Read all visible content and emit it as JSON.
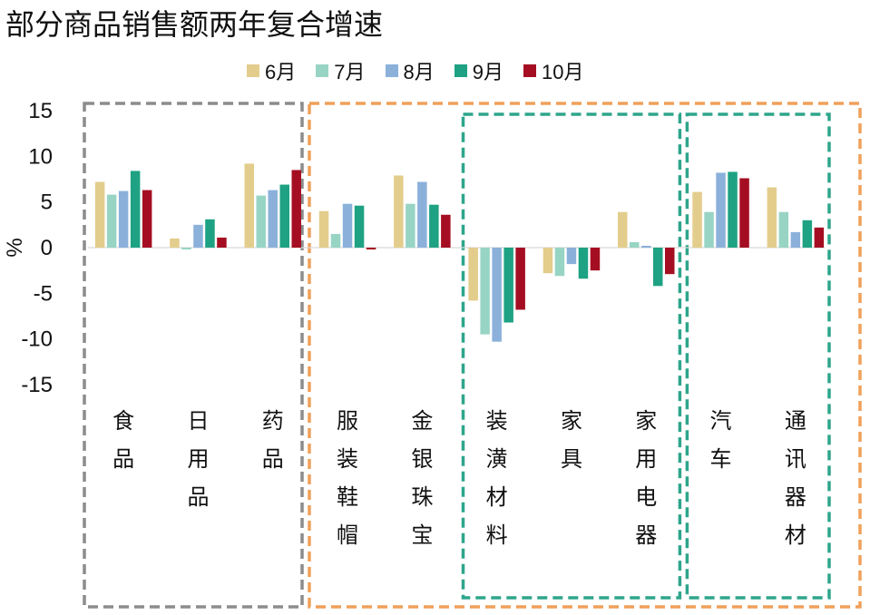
{
  "chart_data": {
    "type": "bar",
    "title": "部分商品销售额两年复合增速",
    "ylabel": "%",
    "ylim": [
      -15,
      15
    ],
    "yticks": [
      15,
      10,
      5,
      0,
      -5,
      -10,
      -15
    ],
    "categories": [
      "食品",
      "日用品",
      "药品",
      "服装鞋帽",
      "金银珠宝",
      "装潢材料",
      "家具",
      "家用电器",
      "汽车",
      "通讯器材"
    ],
    "series": [
      {
        "name": "6月",
        "color": "#E3CD8C",
        "values": [
          7.2,
          1.0,
          9.2,
          4.0,
          7.9,
          -5.8,
          -2.8,
          3.9,
          6.1,
          6.6
        ]
      },
      {
        "name": "7月",
        "color": "#98D4C4",
        "values": [
          5.8,
          -0.2,
          5.7,
          1.5,
          4.8,
          -9.5,
          -3.1,
          0.6,
          3.9,
          3.9
        ]
      },
      {
        "name": "8月",
        "color": "#8BB1DB",
        "values": [
          6.2,
          2.5,
          6.3,
          4.8,
          7.2,
          -10.3,
          -1.8,
          0.2,
          8.2,
          1.7
        ]
      },
      {
        "name": "9月",
        "color": "#1EA283",
        "values": [
          8.4,
          3.1,
          6.9,
          4.6,
          4.7,
          -8.2,
          -3.4,
          -4.2,
          8.3,
          3.0
        ]
      },
      {
        "name": "10月",
        "color": "#A50E22",
        "values": [
          6.3,
          1.1,
          8.5,
          -0.2,
          3.6,
          -6.8,
          -2.5,
          -2.9,
          7.6,
          2.2
        ]
      }
    ],
    "groups": [
      {
        "color": "#8C8C8C"
      },
      {
        "color": "#F0A05A"
      },
      {
        "color": "#2EA58B"
      },
      {
        "color": "#2EA58B"
      }
    ],
    "grid": false,
    "legend_position": "top"
  }
}
